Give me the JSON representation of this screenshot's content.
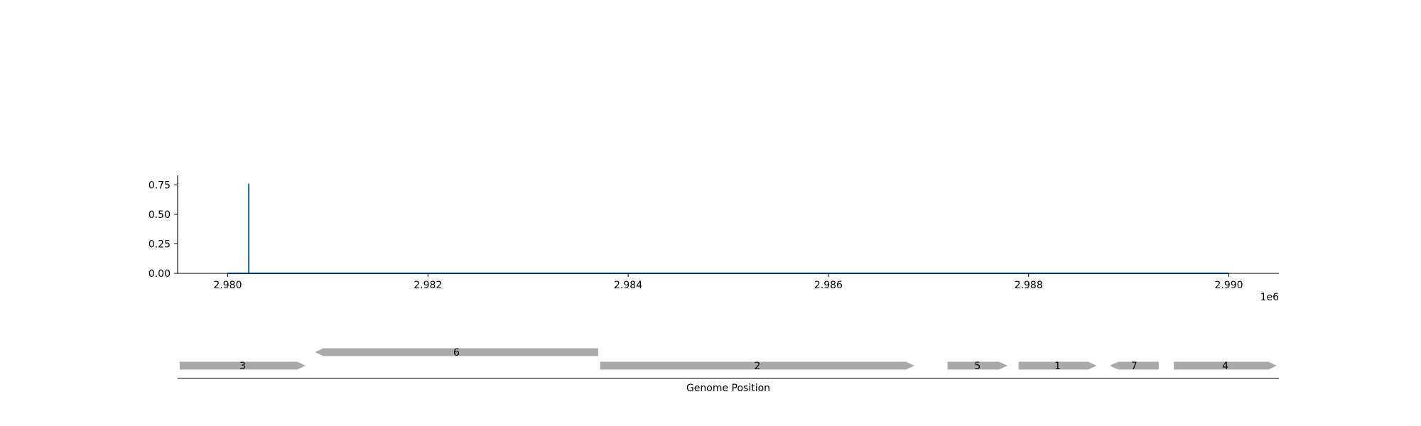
{
  "chart_data": [
    {
      "type": "line",
      "xlim": [
        2979500,
        2990500
      ],
      "ylim": [
        0,
        0.83
      ],
      "x_ticks": [
        2980000,
        2982000,
        2984000,
        2986000,
        2988000,
        2990000
      ],
      "x_tick_labels": [
        "2.980",
        "2.982",
        "2.984",
        "2.986",
        "2.988",
        "2.990"
      ],
      "y_ticks": [
        0,
        0.25,
        0.5,
        0.75
      ],
      "y_tick_labels": [
        "0.00",
        "0.25",
        "0.50",
        "0.75"
      ],
      "x_offset_label": "1e6",
      "grid": false,
      "series": [
        {
          "color": "#1f77b4",
          "x": [
            2980000,
            2980210,
            2980210,
            2980210,
            2990000
          ],
          "y": [
            0,
            0,
            0.76,
            0,
            0
          ]
        }
      ]
    },
    {
      "type": "gene_track",
      "xlabel": "Genome Position",
      "xlim": [
        2979500,
        2990500
      ],
      "color": "#a9a9a9",
      "genes": [
        {
          "label": "3",
          "start": 2979520,
          "end": 2980780,
          "strand": "+",
          "row": 0
        },
        {
          "label": "6",
          "start": 2980870,
          "end": 2983700,
          "strand": "-",
          "row": 1
        },
        {
          "label": "2",
          "start": 2983720,
          "end": 2986860,
          "strand": "+",
          "row": 0
        },
        {
          "label": "5",
          "start": 2987190,
          "end": 2987790,
          "strand": "+",
          "row": 0
        },
        {
          "label": "1",
          "start": 2987900,
          "end": 2988680,
          "strand": "+",
          "row": 0
        },
        {
          "label": "7",
          "start": 2988810,
          "end": 2989300,
          "strand": "-",
          "row": 0
        },
        {
          "label": "4",
          "start": 2989450,
          "end": 2990480,
          "strand": "+",
          "row": 0
        }
      ]
    }
  ]
}
